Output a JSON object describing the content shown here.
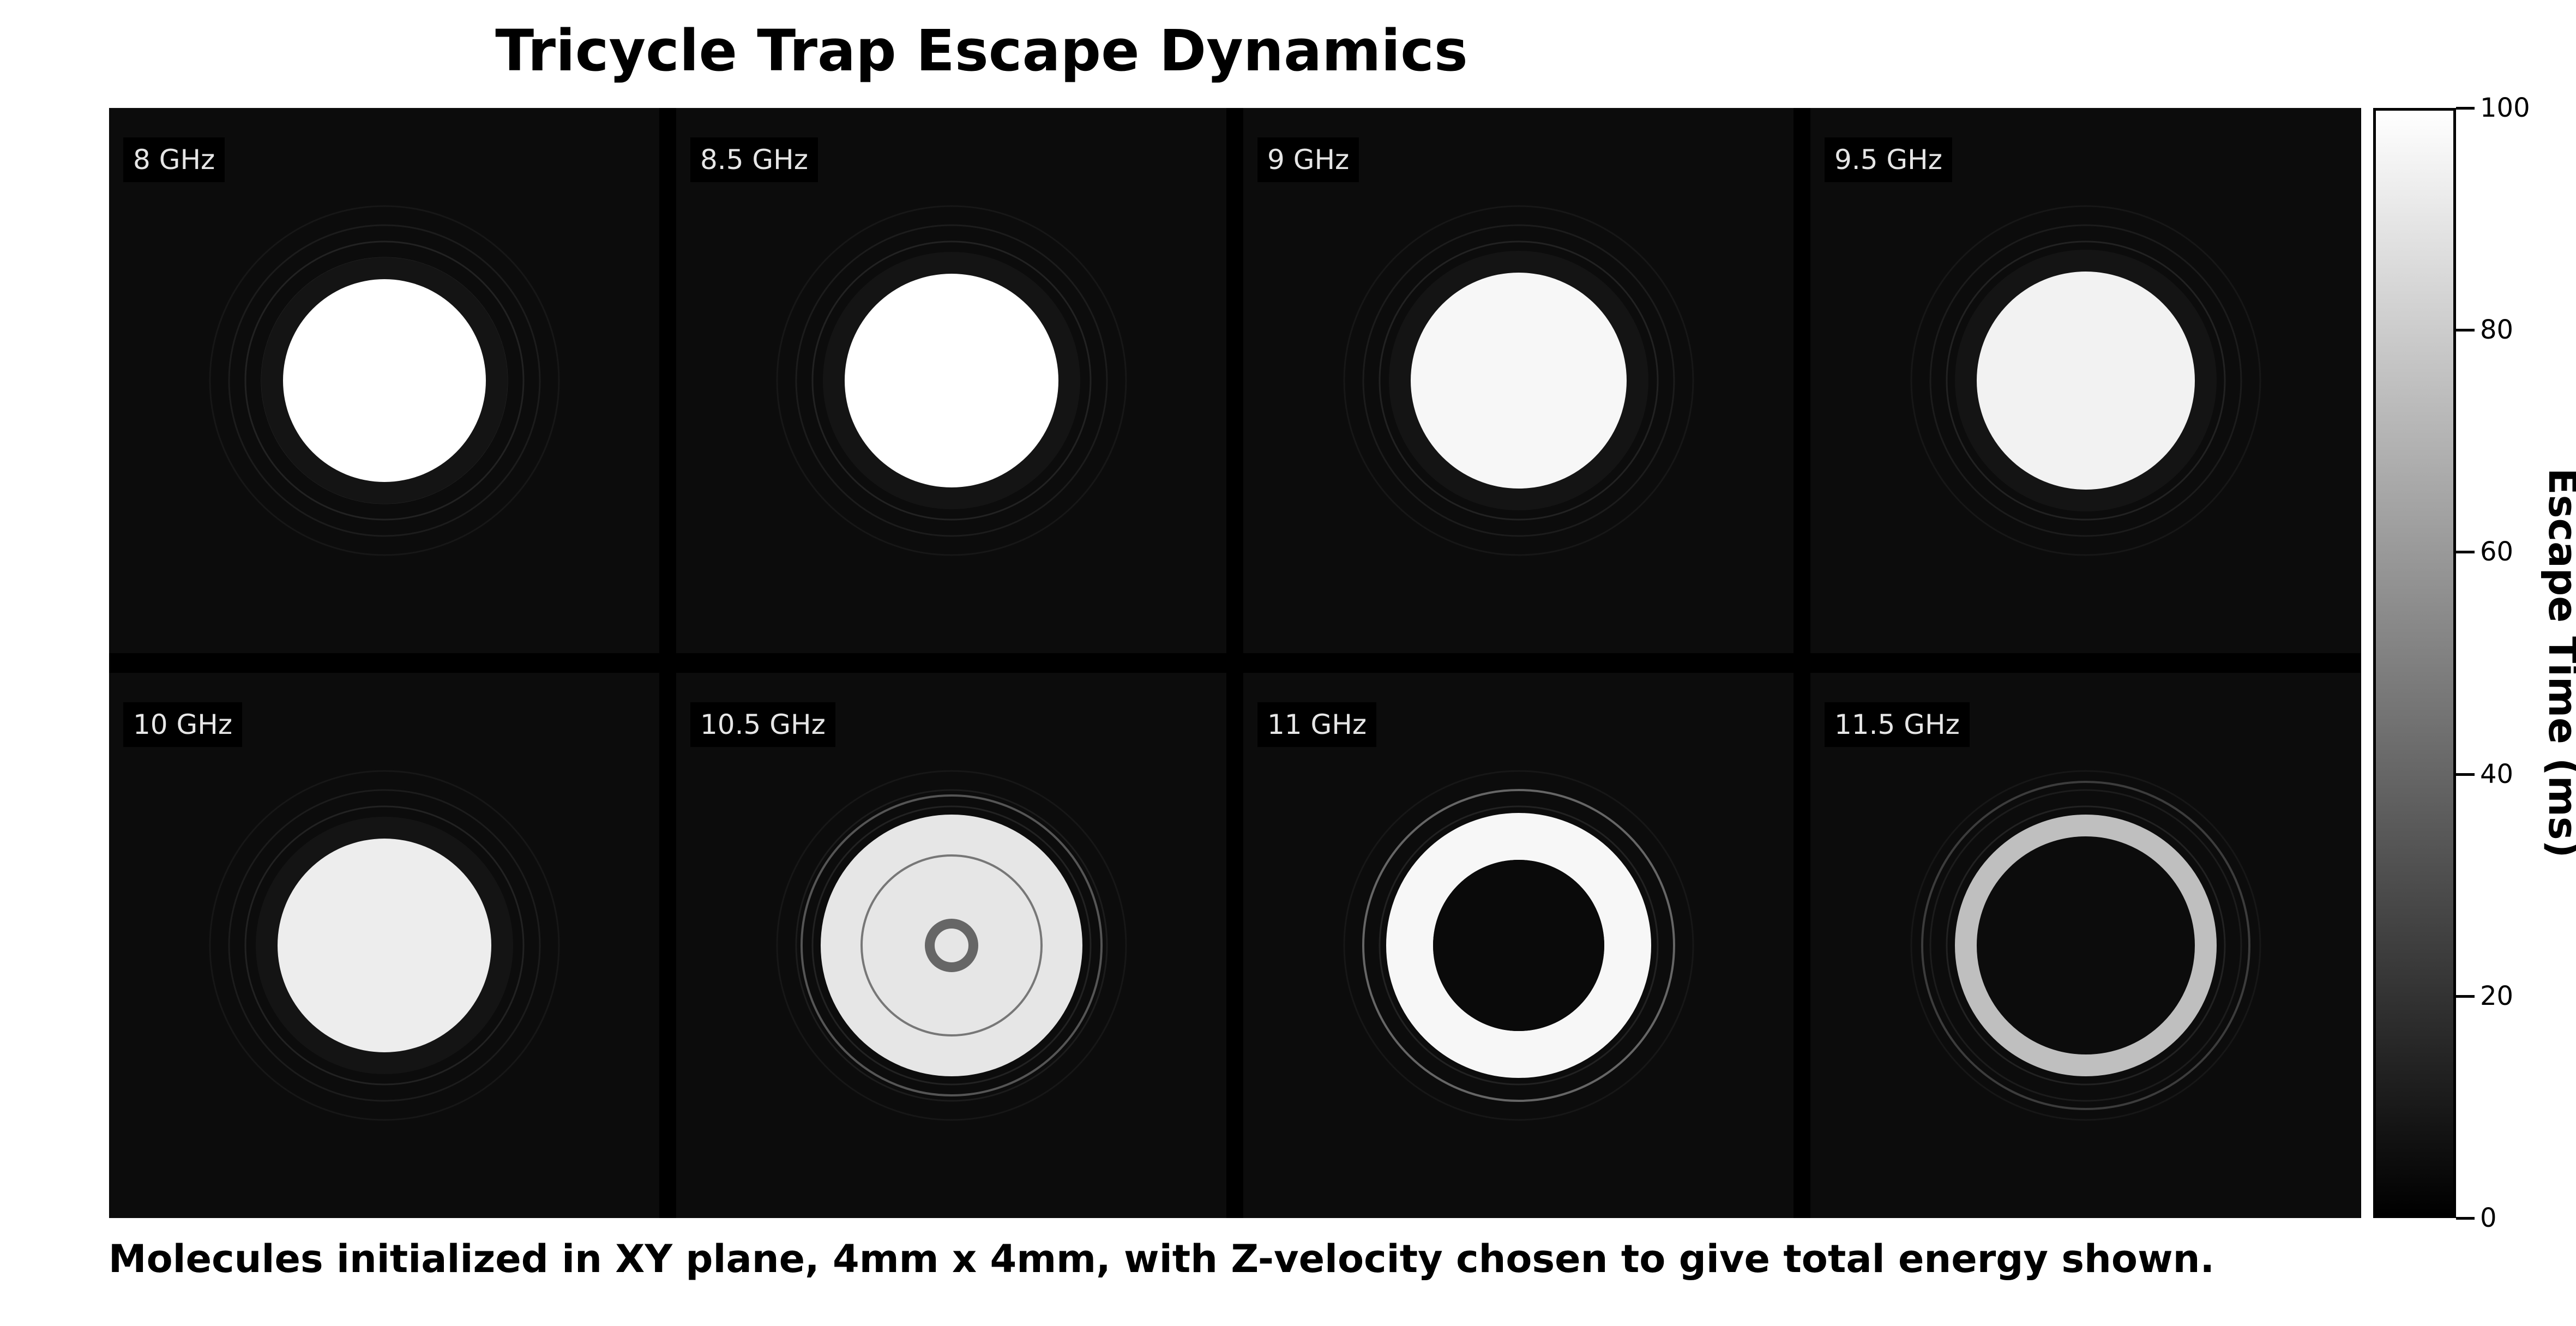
{
  "title": "Tricycle Trap Escape Dynamics",
  "caption": "Molecules initialized in XY plane, 4mm x 4mm, with Z-velocity chosen to give total energy shown.",
  "chart_data": {
    "type": "heatmap",
    "title": "Tricycle Trap Escape Dynamics",
    "grid": {
      "rows": 2,
      "cols": 4
    },
    "panels": [
      {
        "label": "8 GHz",
        "shape": "disk",
        "brightness": 1.0
      },
      {
        "label": "8.5 GHz",
        "shape": "disk",
        "brightness": 1.0
      },
      {
        "label": "9 GHz",
        "shape": "disk",
        "brightness": 0.97
      },
      {
        "label": "9.5 GHz",
        "shape": "disk",
        "brightness": 0.95
      },
      {
        "label": "10 GHz",
        "shape": "disk",
        "brightness": 0.93
      },
      {
        "label": "10.5 GHz",
        "shape": "disk-with-hollow-center",
        "brightness": 0.9
      },
      {
        "label": "11 GHz",
        "shape": "annulus",
        "brightness": 0.97
      },
      {
        "label": "11.5 GHz",
        "shape": "thin-ring",
        "brightness": 0.75
      }
    ],
    "colorbar": {
      "label": "Escape Time (ms)",
      "ticks": [
        0,
        20,
        40,
        60,
        80,
        100
      ],
      "range": [
        0,
        100
      ],
      "colormap": "grayscale",
      "low_color": "#000000",
      "high_color": "#ffffff"
    }
  }
}
